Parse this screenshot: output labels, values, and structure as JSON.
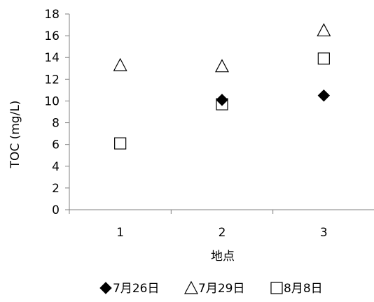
{
  "chart_data": {
    "type": "scatter",
    "xlabel": "地点",
    "ylabel": "TOC (mg/L)",
    "xlim": [
      0.5,
      3.5
    ],
    "ylim": [
      0,
      18
    ],
    "x_ticks": [
      "1",
      "2",
      "3"
    ],
    "y_ticks": [
      "0",
      "2",
      "4",
      "6",
      "8",
      "10",
      "12",
      "14",
      "16",
      "18"
    ],
    "grid": false,
    "legend_position": "bottom",
    "series": [
      {
        "name": "7月26日",
        "marker": "diamond-filled",
        "x": [
          2,
          3
        ],
        "y": [
          10.1,
          10.5
        ]
      },
      {
        "name": "7月29日",
        "marker": "triangle-open",
        "x": [
          1,
          2,
          3
        ],
        "y": [
          13.3,
          13.2,
          16.5
        ]
      },
      {
        "name": "8月8日",
        "marker": "square-open",
        "x": [
          1,
          2,
          3
        ],
        "y": [
          6.1,
          9.7,
          13.9
        ]
      }
    ]
  }
}
